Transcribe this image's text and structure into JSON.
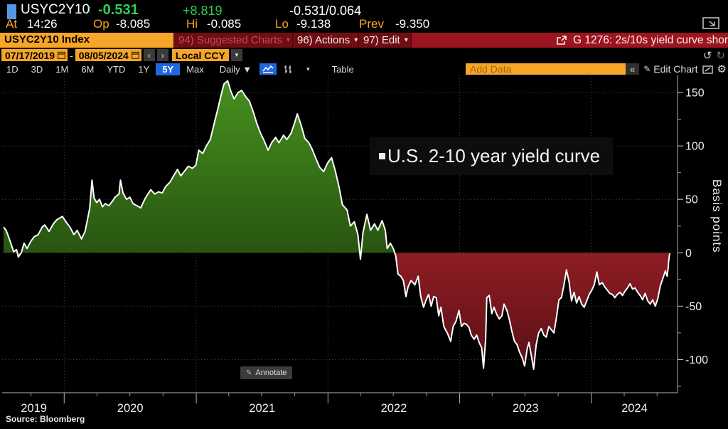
{
  "quote": {
    "ticker": "USYC2Y10",
    "direction_arrow": "↑",
    "last": "-0.531",
    "net_change": "+8.819",
    "bid_ask": "-0.531/0.064",
    "at_label": "At",
    "at_time": "14:26",
    "op_label": "Op",
    "op_value": "-8.085",
    "hi_label": "Hi",
    "hi_value": "-0.085",
    "lo_label": "Lo",
    "lo_value": "-9.138",
    "prev_label": "Prev",
    "prev_value": "-9.350"
  },
  "command_bar": {
    "security_field": "USYC2Y10 Index",
    "suggested_charts_label": "94) Suggested Charts",
    "actions_label": "96) Actions",
    "edit_label": "97) Edit",
    "chart_title": "G 1276: 2s/10s yield curve shor",
    "caret": "▾"
  },
  "date_bar": {
    "start_date": "07/17/2019",
    "separator": "-",
    "end_date": "08/05/2024",
    "prev_arrow": "‹",
    "next_arrow": "›",
    "currency": "Local CCY",
    "currency_caret": "▾",
    "undo_glyph": "↺",
    "redo_glyph": "↻"
  },
  "toolbar": {
    "periods": [
      "1D",
      "3D",
      "1M",
      "6M",
      "YTD",
      "1Y",
      "5Y",
      "Max"
    ],
    "active_period": "5Y",
    "frequency": "Daily ▼",
    "chart_type_caret": "▾",
    "table_label": "Table",
    "add_data_label": "Add Data",
    "collapse_glyph": "«",
    "edit_chart_label": "Edit Chart",
    "pencil_glyph": "✎",
    "gear_glyph": "⚙"
  },
  "annotate": {
    "label": "Annotate",
    "pencil_glyph": "✎"
  },
  "source_label": "Source:  Bloomberg",
  "colors": {
    "accent_amber": "#f7a528",
    "up_green": "#2ecc52",
    "cmd_red_dark": "#700d12",
    "cmd_red_bright": "#9c1420",
    "active_blue": "#2067e0",
    "fill_green_top": "#47921f",
    "fill_green_bottom": "#285510",
    "fill_red_top": "#8f1d24",
    "fill_red_bottom": "#4c0d12",
    "line_white": "#ffffff"
  },
  "chart_data": {
    "type": "area",
    "series_label": "U.S. 2-10 year yield curve",
    "ylabel": "Basis points",
    "x_range": [
      "2019-07-17",
      "2024-08-05"
    ],
    "ylim": [
      -131,
      166
    ],
    "y_ticks": [
      150,
      100,
      50,
      0,
      -50,
      -100
    ],
    "y_minor_step": 25,
    "x_year_labels": [
      "2019",
      "2020",
      "2021",
      "2022",
      "2023",
      "2024"
    ],
    "grid": "dotted",
    "legend_position": "inside-top-right",
    "points": [
      [
        "2019-07-17",
        24
      ],
      [
        "2019-07-24",
        21
      ],
      [
        "2019-08-01",
        14
      ],
      [
        "2019-08-07",
        8
      ],
      [
        "2019-08-14",
        1
      ],
      [
        "2019-08-22",
        3
      ],
      [
        "2019-08-27",
        -4
      ],
      [
        "2019-09-04",
        0
      ],
      [
        "2019-09-12",
        9
      ],
      [
        "2019-09-20",
        4
      ],
      [
        "2019-10-01",
        11
      ],
      [
        "2019-10-10",
        15
      ],
      [
        "2019-10-21",
        17
      ],
      [
        "2019-11-01",
        24
      ],
      [
        "2019-11-08",
        26
      ],
      [
        "2019-11-20",
        20
      ],
      [
        "2019-12-02",
        27
      ],
      [
        "2019-12-12",
        31
      ],
      [
        "2019-12-27",
        34
      ],
      [
        "2020-01-08",
        28
      ],
      [
        "2020-01-17",
        24
      ],
      [
        "2020-01-28",
        17
      ],
      [
        "2020-02-06",
        21
      ],
      [
        "2020-02-18",
        13
      ],
      [
        "2020-02-28",
        20
      ],
      [
        "2020-03-06",
        32
      ],
      [
        "2020-03-12",
        42
      ],
      [
        "2020-03-18",
        68
      ],
      [
        "2020-03-24",
        51
      ],
      [
        "2020-03-31",
        47
      ],
      [
        "2020-04-08",
        50
      ],
      [
        "2020-04-16",
        43
      ],
      [
        "2020-04-24",
        46
      ],
      [
        "2020-05-04",
        44
      ],
      [
        "2020-05-13",
        48
      ],
      [
        "2020-05-21",
        52
      ],
      [
        "2020-06-01",
        55
      ],
      [
        "2020-06-05",
        68
      ],
      [
        "2020-06-12",
        56
      ],
      [
        "2020-06-22",
        50
      ],
      [
        "2020-07-01",
        52
      ],
      [
        "2020-07-10",
        46
      ],
      [
        "2020-07-21",
        44
      ],
      [
        "2020-07-31",
        42
      ],
      [
        "2020-08-11",
        50
      ],
      [
        "2020-08-20",
        55
      ],
      [
        "2020-08-28",
        59
      ],
      [
        "2020-09-08",
        55
      ],
      [
        "2020-09-18",
        57
      ],
      [
        "2020-09-29",
        56
      ],
      [
        "2020-10-08",
        62
      ],
      [
        "2020-10-20",
        66
      ],
      [
        "2020-10-30",
        72
      ],
      [
        "2020-11-10",
        78
      ],
      [
        "2020-11-19",
        72
      ],
      [
        "2020-12-01",
        77
      ],
      [
        "2020-12-10",
        81
      ],
      [
        "2020-12-21",
        79
      ],
      [
        "2020-12-31",
        82
      ],
      [
        "2021-01-08",
        96
      ],
      [
        "2021-01-19",
        93
      ],
      [
        "2021-01-29",
        100
      ],
      [
        "2021-02-09",
        106
      ],
      [
        "2021-02-19",
        120
      ],
      [
        "2021-03-02",
        135
      ],
      [
        "2021-03-11",
        148
      ],
      [
        "2021-03-19",
        158
      ],
      [
        "2021-03-29",
        161
      ],
      [
        "2021-04-08",
        150
      ],
      [
        "2021-04-16",
        144
      ],
      [
        "2021-04-27",
        150
      ],
      [
        "2021-05-07",
        152
      ],
      [
        "2021-05-18",
        146
      ],
      [
        "2021-05-28",
        142
      ],
      [
        "2021-06-08",
        132
      ],
      [
        "2021-06-17",
        122
      ],
      [
        "2021-06-28",
        112
      ],
      [
        "2021-07-08",
        105
      ],
      [
        "2021-07-19",
        96
      ],
      [
        "2021-07-29",
        103
      ],
      [
        "2021-08-09",
        108
      ],
      [
        "2021-08-18",
        103
      ],
      [
        "2021-08-31",
        110
      ],
      [
        "2021-09-09",
        106
      ],
      [
        "2021-09-21",
        112
      ],
      [
        "2021-09-30",
        121
      ],
      [
        "2021-10-08",
        130
      ],
      [
        "2021-10-19",
        119
      ],
      [
        "2021-10-29",
        107
      ],
      [
        "2021-11-09",
        103
      ],
      [
        "2021-11-18",
        97
      ],
      [
        "2021-11-30",
        87
      ],
      [
        "2021-12-09",
        80
      ],
      [
        "2021-12-20",
        76
      ],
      [
        "2021-12-31",
        84
      ],
      [
        "2022-01-11",
        89
      ],
      [
        "2022-01-21",
        77
      ],
      [
        "2022-02-01",
        61
      ],
      [
        "2022-02-10",
        45
      ],
      [
        "2022-02-23",
        40
      ],
      [
        "2022-03-04",
        25
      ],
      [
        "2022-03-15",
        29
      ],
      [
        "2022-03-25",
        17
      ],
      [
        "2022-04-01",
        -6
      ],
      [
        "2022-04-08",
        19
      ],
      [
        "2022-04-19",
        36
      ],
      [
        "2022-04-29",
        21
      ],
      [
        "2022-05-10",
        27
      ],
      [
        "2022-05-19",
        21
      ],
      [
        "2022-05-31",
        30
      ],
      [
        "2022-06-09",
        21
      ],
      [
        "2022-06-14",
        4
      ],
      [
        "2022-06-23",
        9
      ],
      [
        "2022-07-01",
        4
      ],
      [
        "2022-07-08",
        -3
      ],
      [
        "2022-07-14",
        -20
      ],
      [
        "2022-07-22",
        -22
      ],
      [
        "2022-07-29",
        -26
      ],
      [
        "2022-08-05",
        -41
      ],
      [
        "2022-08-11",
        -32
      ],
      [
        "2022-08-19",
        -26
      ],
      [
        "2022-08-30",
        -30
      ],
      [
        "2022-09-08",
        -22
      ],
      [
        "2022-09-15",
        -41
      ],
      [
        "2022-09-23",
        -51
      ],
      [
        "2022-09-30",
        -44
      ],
      [
        "2022-10-07",
        -39
      ],
      [
        "2022-10-14",
        -50
      ],
      [
        "2022-10-21",
        -41
      ],
      [
        "2022-10-28",
        -42
      ],
      [
        "2022-11-04",
        -59
      ],
      [
        "2022-11-10",
        -51
      ],
      [
        "2022-11-18",
        -69
      ],
      [
        "2022-11-29",
        -76
      ],
      [
        "2022-12-07",
        -83
      ],
      [
        "2022-12-14",
        -69
      ],
      [
        "2022-12-22",
        -64
      ],
      [
        "2022-12-30",
        -54
      ],
      [
        "2023-01-06",
        -69
      ],
      [
        "2023-01-13",
        -66
      ],
      [
        "2023-01-20",
        -67
      ],
      [
        "2023-01-27",
        -70
      ],
      [
        "2023-02-02",
        -77
      ],
      [
        "2023-02-10",
        -81
      ],
      [
        "2023-02-17",
        -77
      ],
      [
        "2023-02-24",
        -84
      ],
      [
        "2023-03-03",
        -89
      ],
      [
        "2023-03-08",
        -108
      ],
      [
        "2023-03-14",
        -81
      ],
      [
        "2023-03-17",
        -42
      ],
      [
        "2023-03-24",
        -40
      ],
      [
        "2023-03-31",
        -57
      ],
      [
        "2023-04-06",
        -51
      ],
      [
        "2023-04-14",
        -58
      ],
      [
        "2023-04-21",
        -62
      ],
      [
        "2023-04-28",
        -59
      ],
      [
        "2023-05-04",
        -48
      ],
      [
        "2023-05-12",
        -54
      ],
      [
        "2023-05-19",
        -63
      ],
      [
        "2023-05-26",
        -74
      ],
      [
        "2023-06-02",
        -83
      ],
      [
        "2023-06-09",
        -86
      ],
      [
        "2023-06-16",
        -93
      ],
      [
        "2023-06-23",
        -98
      ],
      [
        "2023-06-30",
        -106
      ],
      [
        "2023-07-07",
        -90
      ],
      [
        "2023-07-12",
        -84
      ],
      [
        "2023-07-19",
        -97
      ],
      [
        "2023-07-25",
        -109
      ],
      [
        "2023-08-01",
        -86
      ],
      [
        "2023-08-08",
        -75
      ],
      [
        "2023-08-15",
        -71
      ],
      [
        "2023-08-22",
        -77
      ],
      [
        "2023-08-29",
        -79
      ],
      [
        "2023-09-05",
        -69
      ],
      [
        "2023-09-12",
        -72
      ],
      [
        "2023-09-19",
        -75
      ],
      [
        "2023-09-26",
        -61
      ],
      [
        "2023-10-03",
        -44
      ],
      [
        "2023-10-10",
        -42
      ],
      [
        "2023-10-17",
        -30
      ],
      [
        "2023-10-24",
        -16
      ],
      [
        "2023-10-31",
        -27
      ],
      [
        "2023-11-07",
        -45
      ],
      [
        "2023-11-14",
        -37
      ],
      [
        "2023-11-21",
        -47
      ],
      [
        "2023-11-28",
        -41
      ],
      [
        "2023-12-05",
        -48
      ],
      [
        "2023-12-12",
        -51
      ],
      [
        "2023-12-19",
        -45
      ],
      [
        "2023-12-26",
        -39
      ],
      [
        "2024-01-02",
        -35
      ],
      [
        "2024-01-09",
        -30
      ],
      [
        "2024-01-16",
        -18
      ],
      [
        "2024-01-23",
        -30
      ],
      [
        "2024-01-31",
        -28
      ],
      [
        "2024-02-07",
        -32
      ],
      [
        "2024-02-14",
        -35
      ],
      [
        "2024-02-21",
        -38
      ],
      [
        "2024-02-28",
        -39
      ],
      [
        "2024-03-06",
        -42
      ],
      [
        "2024-03-13",
        -39
      ],
      [
        "2024-03-20",
        -37
      ],
      [
        "2024-03-27",
        -40
      ],
      [
        "2024-04-03",
        -36
      ],
      [
        "2024-04-10",
        -33
      ],
      [
        "2024-04-17",
        -29
      ],
      [
        "2024-04-24",
        -34
      ],
      [
        "2024-05-01",
        -33
      ],
      [
        "2024-05-08",
        -37
      ],
      [
        "2024-05-15",
        -40
      ],
      [
        "2024-05-22",
        -44
      ],
      [
        "2024-05-29",
        -38
      ],
      [
        "2024-06-05",
        -45
      ],
      [
        "2024-06-12",
        -48
      ],
      [
        "2024-06-19",
        -44
      ],
      [
        "2024-06-26",
        -50
      ],
      [
        "2024-07-03",
        -43
      ],
      [
        "2024-07-10",
        -31
      ],
      [
        "2024-07-17",
        -24
      ],
      [
        "2024-07-24",
        -17
      ],
      [
        "2024-07-29",
        -22
      ],
      [
        "2024-08-01",
        -13
      ],
      [
        "2024-08-02",
        -8
      ],
      [
        "2024-08-05",
        -0.5
      ]
    ]
  }
}
